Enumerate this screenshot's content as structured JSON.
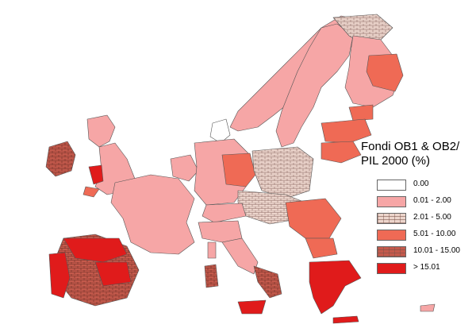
{
  "legend": {
    "title": "Fondi OB1 & OB2/\nPIL 2000 (%)",
    "classes": [
      {
        "label": "0.00",
        "color": "#ffffff",
        "pattern": "none"
      },
      {
        "label": "0.01 - 2.00",
        "color": "#f6a6a6",
        "pattern": "none"
      },
      {
        "label": "2.01 - 5.00",
        "color": "#ecd5cc",
        "pattern": "brick"
      },
      {
        "label": "5.01 - 10.00",
        "color": "#ef6a55",
        "pattern": "none"
      },
      {
        "label": "10.01 - 15.00",
        "color": "#c45a4c",
        "pattern": "brick"
      },
      {
        "label": "> 15.01",
        "color": "#e01b1b",
        "pattern": "none"
      }
    ]
  },
  "colors": {
    "outline": "#555555",
    "background": "#ffffff"
  }
}
